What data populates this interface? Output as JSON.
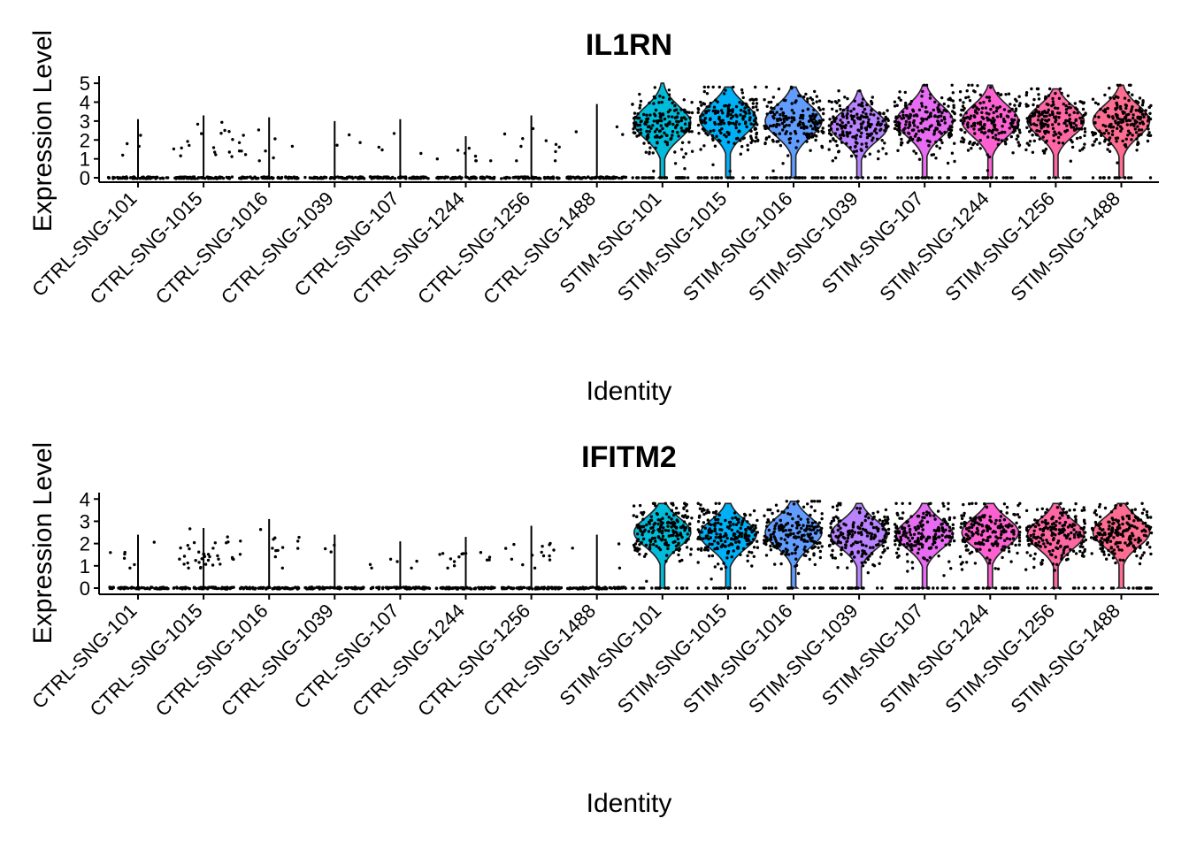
{
  "chart_data": [
    {
      "type": "violin",
      "title": "IL1RN",
      "xlabel": "Identity",
      "ylabel": "Expression Level",
      "ylim": [
        0,
        5.1
      ],
      "yticks": [
        0,
        1,
        2,
        3,
        4,
        5
      ],
      "categories": [
        "CTRL-SNG-101",
        "CTRL-SNG-1015",
        "CTRL-SNG-1016",
        "CTRL-SNG-1039",
        "CTRL-SNG-107",
        "CTRL-SNG-1244",
        "CTRL-SNG-1256",
        "CTRL-SNG-1488",
        "STIM-SNG-101",
        "STIM-SNG-1015",
        "STIM-SNG-1016",
        "STIM-SNG-1039",
        "STIM-SNG-107",
        "STIM-SNG-1244",
        "STIM-SNG-1256",
        "STIM-SNG-1488"
      ],
      "colors": [
        "#F8766D",
        "#E58700",
        "#C99800",
        "#A3A500",
        "#6BB100",
        "#00BA38",
        "#00BF7D",
        "#00C0AF",
        "#00BCD8",
        "#00B0F6",
        "#619CFF",
        "#B983FF",
        "#E76BF3",
        "#FD61D1",
        "#FF67A4",
        "#FF6C91"
      ],
      "max_values": [
        3.1,
        3.3,
        3.2,
        3.0,
        3.1,
        2.2,
        3.3,
        3.9,
        5.0,
        4.8,
        4.8,
        4.6,
        4.9,
        4.9,
        4.7,
        4.9
      ],
      "nonzero_medians": [
        0,
        0,
        0,
        0,
        0,
        0,
        0,
        0,
        2.9,
        3.1,
        3.0,
        2.7,
        3.0,
        3.0,
        3.0,
        3.0
      ],
      "nonzero_fraction": [
        0.03,
        0.12,
        0.08,
        0.02,
        0.03,
        0.06,
        0.07,
        0.02,
        0.9,
        0.95,
        0.9,
        0.88,
        0.9,
        0.93,
        0.92,
        0.94
      ]
    },
    {
      "type": "violin",
      "title": "IFITM2",
      "xlabel": "Identity",
      "ylabel": "Expression Level",
      "ylim": [
        0,
        4.05
      ],
      "yticks": [
        0,
        1,
        2,
        3,
        4
      ],
      "categories": [
        "CTRL-SNG-101",
        "CTRL-SNG-1015",
        "CTRL-SNG-1016",
        "CTRL-SNG-1039",
        "CTRL-SNG-107",
        "CTRL-SNG-1244",
        "CTRL-SNG-1256",
        "CTRL-SNG-1488",
        "STIM-SNG-101",
        "STIM-SNG-1015",
        "STIM-SNG-1016",
        "STIM-SNG-1039",
        "STIM-SNG-107",
        "STIM-SNG-1244",
        "STIM-SNG-1256",
        "STIM-SNG-1488"
      ],
      "colors": [
        "#F8766D",
        "#E58700",
        "#C99800",
        "#A3A500",
        "#6BB100",
        "#00BA38",
        "#00BF7D",
        "#00C0AF",
        "#00BCD8",
        "#00B0F6",
        "#619CFF",
        "#B983FF",
        "#E76BF3",
        "#FD61D1",
        "#FF67A4",
        "#FF6C91"
      ],
      "max_values": [
        2.4,
        2.7,
        3.1,
        2.4,
        2.1,
        2.3,
        2.8,
        2.4,
        3.8,
        3.8,
        3.9,
        3.8,
        3.8,
        3.8,
        3.8,
        3.8
      ],
      "nonzero_medians": [
        0,
        0,
        0,
        0,
        0,
        0,
        0,
        0,
        2.5,
        2.4,
        2.5,
        2.4,
        2.4,
        2.5,
        2.4,
        2.5
      ],
      "nonzero_fraction": [
        0.05,
        0.25,
        0.1,
        0.02,
        0.04,
        0.1,
        0.1,
        0.02,
        0.9,
        0.92,
        0.9,
        0.9,
        0.9,
        0.9,
        0.9,
        0.9
      ]
    }
  ]
}
